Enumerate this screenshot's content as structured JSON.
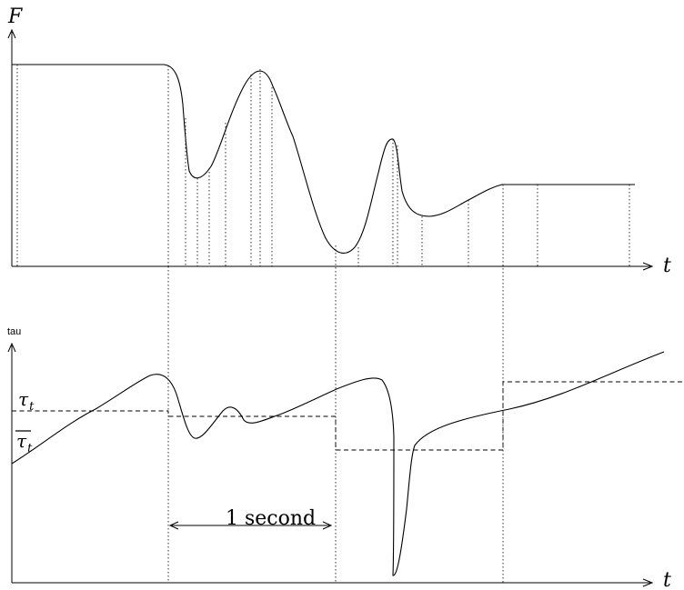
{
  "top_plot": {
    "y_label": "F",
    "x_label": "t"
  },
  "bottom_plot": {
    "y_label": "tau",
    "x_label": "t",
    "series_label_tau": "τ",
    "series_label_tau_sub": "t",
    "series_label_tau_bar": "τ",
    "series_label_tau_bar_sub": "t",
    "interval_label": "1 second"
  }
}
